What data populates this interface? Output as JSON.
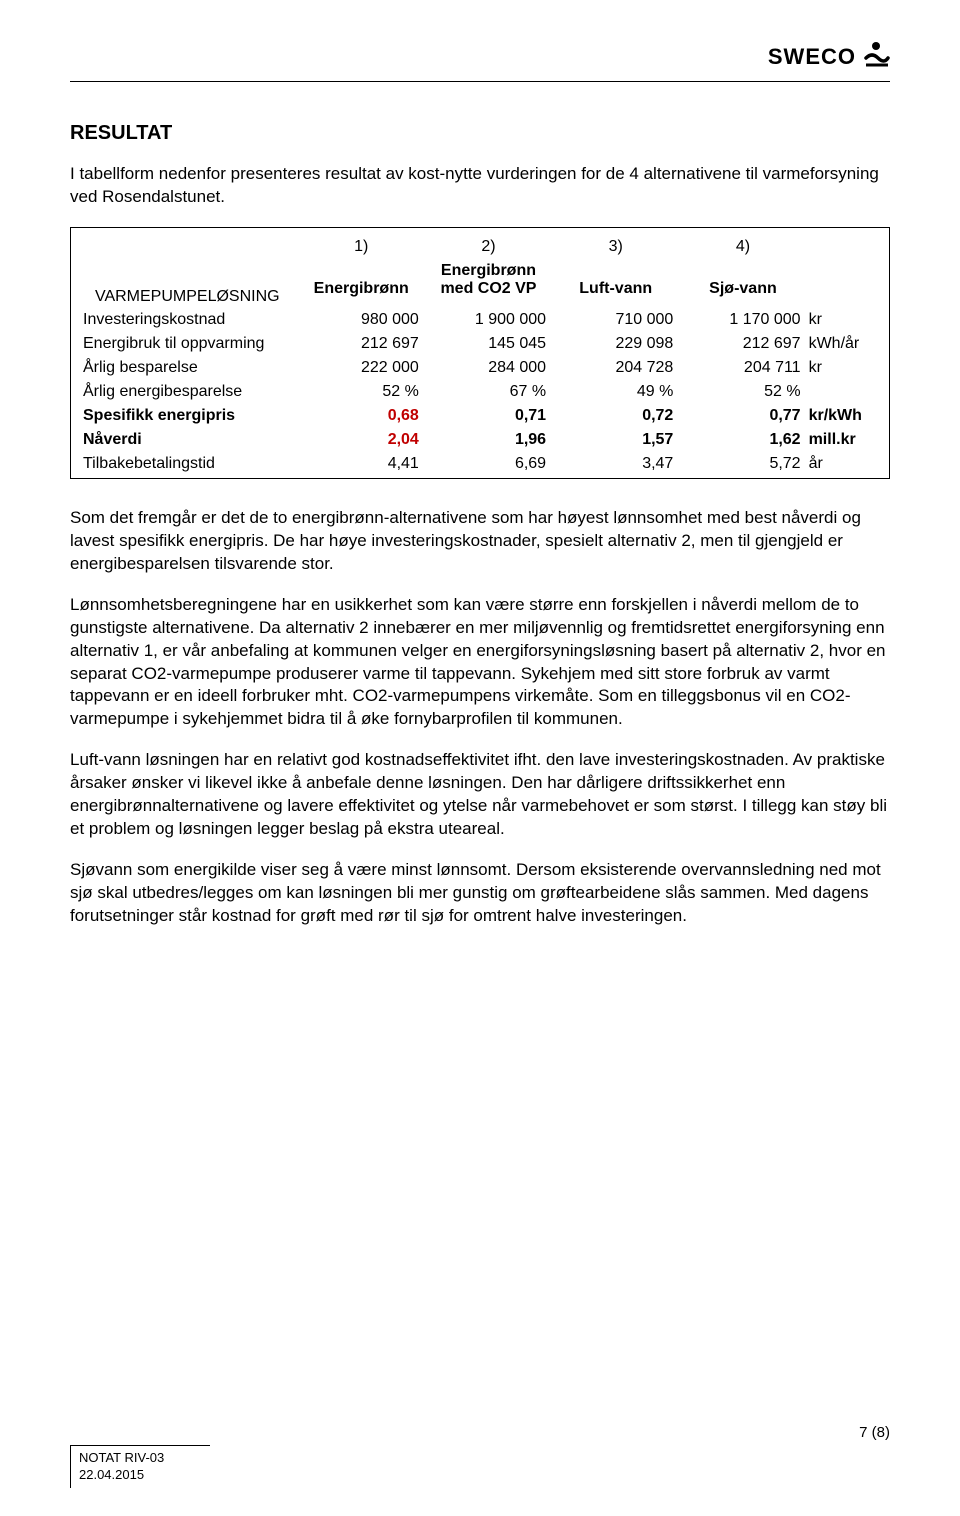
{
  "header": {
    "logo_text": "SWECO"
  },
  "section_title": "RESULTAT",
  "intro": "I tabellform nedenfor presenteres resultat av kost-nytte vurderingen for de 4 alternativene til varmeforsyning ved Rosendalstunet.",
  "table": {
    "row_header": "VARMEPUMPELØSNING",
    "col_numbers": [
      "1)",
      "2)",
      "3)",
      "4)"
    ],
    "col_headers": [
      "Energibrønn",
      "Energibrønn med CO2 VP",
      "Luft-vann",
      "Sjø-vann"
    ],
    "rows": [
      {
        "label": "Investeringskostnad",
        "values": [
          "980 000",
          "1 900 000",
          "710 000",
          "1 170 000"
        ],
        "unit": "kr",
        "bold": false
      },
      {
        "label": "Energibruk til oppvarming",
        "values": [
          "212 697",
          "145 045",
          "229 098",
          "212 697"
        ],
        "unit": "kWh/år",
        "bold": false
      },
      {
        "label": "Årlig besparelse",
        "values": [
          "222 000",
          "284 000",
          "204 728",
          "204 711"
        ],
        "unit": "kr",
        "bold": false
      },
      {
        "label": "Årlig energibesparelse",
        "values": [
          "52 %",
          "67 %",
          "49 %",
          "52 %"
        ],
        "unit": "",
        "bold": false
      },
      {
        "label": "Spesifikk energipris",
        "values": [
          "0,68",
          "0,71",
          "0,72",
          "0,77"
        ],
        "unit": "kr/kWh",
        "bold": true,
        "highlight_col": 0
      },
      {
        "label": "Nåverdi",
        "values": [
          "2,04",
          "1,96",
          "1,57",
          "1,62"
        ],
        "unit": "mill.kr",
        "bold": true,
        "highlight_col": 0
      },
      {
        "label": "Tilbakebetalingstid",
        "values": [
          "4,41",
          "6,69",
          "3,47",
          "5,72"
        ],
        "unit": "år",
        "bold": false
      }
    ],
    "highlight_color": "#c00000"
  },
  "paragraphs": [
    "Som det fremgår er det de to energibrønn-alternativene som har høyest lønnsomhet med best nåverdi og lavest spesifikk energipris. De har høye investeringskostnader, spesielt alternativ 2, men til gjengjeld er energibesparelsen tilsvarende stor.",
    "Lønnsomhetsberegningene har en usikkerhet som kan være større enn forskjellen i nåverdi mellom de to gunstigste alternativene. Da alternativ 2 innebærer en mer miljøvennlig og fremtidsrettet energiforsyning enn alternativ 1, er vår anbefaling at kommunen velger en energiforsyningsløsning basert på alternativ 2, hvor en separat CO2-varmepumpe produserer varme til tappevann. Sykehjem med sitt store forbruk av varmt tappevann er en ideell forbruker mht. CO2-varmepumpens virkemåte. Som en tilleggsbonus vil en CO2-varmepumpe i sykehjemmet bidra til å øke fornybarprofilen til kommunen.",
    "Luft-vann løsningen har en relativt god kostnadseffektivitet ifht. den lave investeringskostnaden. Av praktiske årsaker ønsker vi likevel ikke å anbefale denne løsningen. Den har dårligere driftssikkerhet enn energibrønnalternativene og lavere effektivitet og ytelse når varmebehovet er som størst. I tillegg kan støy bli et problem og løsningen legger beslag på ekstra uteareal.",
    "Sjøvann som energikilde viser seg å være minst lønnsomt. Dersom eksisterende overvannsledning ned mot sjø skal utbedres/legges om kan løsningen bli mer gunstig om grøftearbeidene slås sammen. Med dagens forutsetninger står kostnad for grøft med rør til sjø for omtrent halve investeringen."
  ],
  "footer": {
    "page": "7 (8)",
    "doc_ref": "NOTAT RIV-03",
    "date": "22.04.2015"
  }
}
